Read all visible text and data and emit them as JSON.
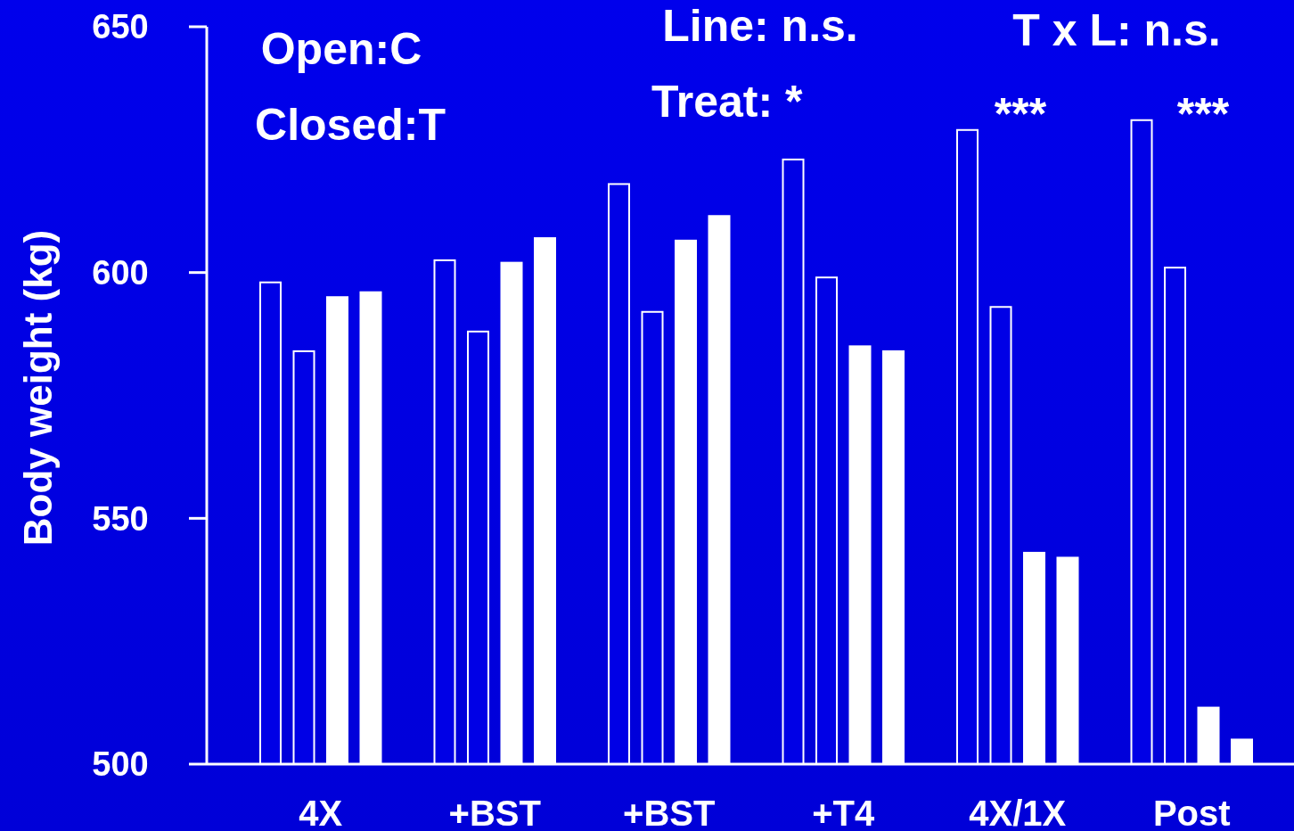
{
  "chart_data": {
    "type": "bar",
    "ylabel": "Body weight (kg)",
    "categories": [
      "4X",
      "+BST",
      "+BST",
      "+T4",
      "4X/1X",
      "Post"
    ],
    "series": [
      {
        "color": "#0000e6",
        "values": [
          598,
          602.5,
          618,
          623,
          629,
          631
        ]
      },
      {
        "color": "#0000e6",
        "values": [
          584,
          588,
          592,
          599,
          593,
          601
        ]
      },
      {
        "color": "#ffffff",
        "values": [
          595,
          602,
          606.5,
          585,
          543,
          511.5
        ]
      },
      {
        "color": "#ffffff",
        "values": [
          596,
          607,
          611.5,
          584,
          542,
          505
        ]
      }
    ],
    "ylim": [
      500,
      650
    ],
    "yticks": [
      500,
      550,
      600,
      650
    ],
    "grid": false,
    "annotations": [
      "Open:C",
      "Closed:T",
      "Line: n.s.",
      "Treat:  *",
      "T x L: n.s.",
      "***",
      "***"
    ]
  }
}
